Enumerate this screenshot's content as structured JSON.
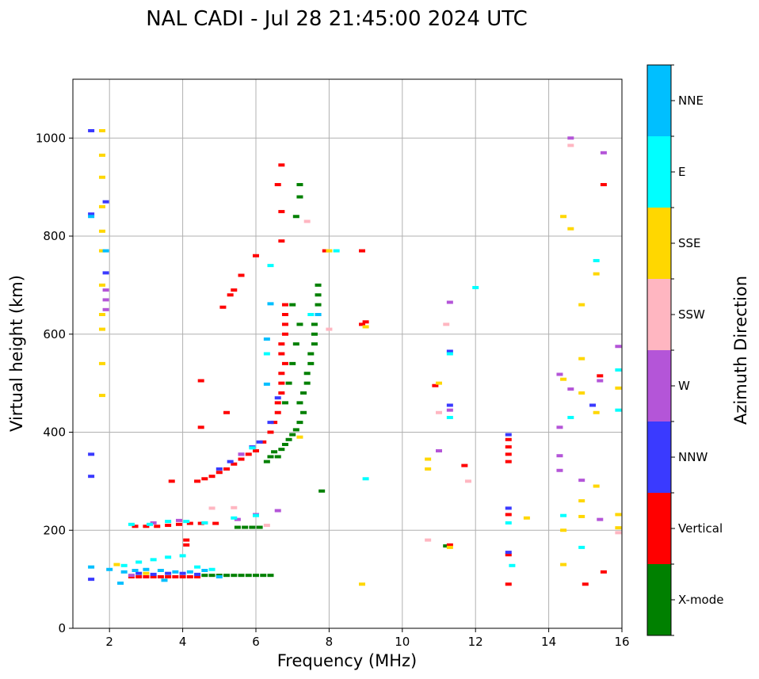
{
  "chart_data": {
    "type": "scatter",
    "title": "NAL CADI - Jul 28 21:45:00 2024 UTC",
    "xlabel": "Frequency (MHz)",
    "ylabel": "Virtual height (km)",
    "xlim": [
      1,
      16
    ],
    "ylim": [
      0,
      1120
    ],
    "xticks": [
      2,
      4,
      6,
      8,
      10,
      12,
      14,
      16
    ],
    "yticks": [
      0,
      200,
      400,
      600,
      800,
      1000
    ],
    "grid": true,
    "colorbar": {
      "label": "Azimuth Direction",
      "categories": [
        {
          "name": "X-mode",
          "color": "#008000"
        },
        {
          "name": "Vertical",
          "color": "#ff0000"
        },
        {
          "name": "NNW",
          "color": "#3a3aff"
        },
        {
          "name": "W",
          "color": "#b455d8"
        },
        {
          "name": "SSW",
          "color": "#ffb6c1"
        },
        {
          "name": "SSE",
          "color": "#ffd700"
        },
        {
          "name": "E",
          "color": "#00ffff"
        },
        {
          "name": "NNE",
          "color": "#00bfff"
        }
      ]
    },
    "series": [
      {
        "name": "X-mode",
        "color": "#008000",
        "points": [
          [
            4.6,
            108
          ],
          [
            4.8,
            108
          ],
          [
            5.0,
            108
          ],
          [
            5.2,
            108
          ],
          [
            5.4,
            108
          ],
          [
            5.6,
            108
          ],
          [
            5.8,
            108
          ],
          [
            6.0,
            108
          ],
          [
            6.2,
            108
          ],
          [
            6.4,
            108
          ],
          [
            5.5,
            206
          ],
          [
            5.7,
            206
          ],
          [
            5.9,
            206
          ],
          [
            6.1,
            206
          ],
          [
            6.3,
            340
          ],
          [
            6.4,
            350
          ],
          [
            6.5,
            360
          ],
          [
            6.6,
            350
          ],
          [
            6.7,
            365
          ],
          [
            6.8,
            375
          ],
          [
            6.9,
            385
          ],
          [
            7.0,
            395
          ],
          [
            7.1,
            405
          ],
          [
            7.2,
            420
          ],
          [
            7.3,
            440
          ],
          [
            7.2,
            460
          ],
          [
            7.3,
            480
          ],
          [
            7.4,
            500
          ],
          [
            7.4,
            520
          ],
          [
            7.5,
            540
          ],
          [
            7.5,
            560
          ],
          [
            7.6,
            580
          ],
          [
            7.6,
            600
          ],
          [
            7.6,
            620
          ],
          [
            7.7,
            640
          ],
          [
            7.7,
            660
          ],
          [
            7.7,
            680
          ],
          [
            7.7,
            700
          ],
          [
            6.8,
            460
          ],
          [
            6.9,
            500
          ],
          [
            7.0,
            540
          ],
          [
            7.1,
            580
          ],
          [
            7.2,
            620
          ],
          [
            7.0,
            660
          ],
          [
            7.1,
            840
          ],
          [
            7.2,
            880
          ],
          [
            7.2,
            905
          ],
          [
            7.8,
            280
          ],
          [
            11.2,
            168
          ]
        ]
      },
      {
        "name": "Vertical",
        "color": "#ff0000",
        "points": [
          [
            2.6,
            105
          ],
          [
            2.8,
            105
          ],
          [
            3.0,
            105
          ],
          [
            3.2,
            105
          ],
          [
            3.4,
            105
          ],
          [
            3.6,
            105
          ],
          [
            3.8,
            105
          ],
          [
            4.0,
            105
          ],
          [
            4.2,
            105
          ],
          [
            4.4,
            105
          ],
          [
            2.7,
            208
          ],
          [
            3.0,
            208
          ],
          [
            3.3,
            208
          ],
          [
            3.6,
            210
          ],
          [
            3.9,
            212
          ],
          [
            4.2,
            214
          ],
          [
            4.5,
            214
          ],
          [
            4.9,
            214
          ],
          [
            4.1,
            170
          ],
          [
            4.1,
            180
          ],
          [
            4.4,
            300
          ],
          [
            4.6,
            305
          ],
          [
            4.8,
            310
          ],
          [
            5.0,
            318
          ],
          [
            5.2,
            325
          ],
          [
            5.4,
            335
          ],
          [
            5.6,
            345
          ],
          [
            5.8,
            355
          ],
          [
            6.0,
            362
          ],
          [
            6.2,
            380
          ],
          [
            6.4,
            400
          ],
          [
            6.5,
            420
          ],
          [
            6.6,
            440
          ],
          [
            6.6,
            460
          ],
          [
            6.7,
            480
          ],
          [
            6.7,
            500
          ],
          [
            6.7,
            520
          ],
          [
            6.8,
            540
          ],
          [
            6.7,
            560
          ],
          [
            6.7,
            580
          ],
          [
            6.8,
            600
          ],
          [
            6.8,
            620
          ],
          [
            6.8,
            640
          ],
          [
            6.8,
            660
          ],
          [
            5.1,
            655
          ],
          [
            5.3,
            680
          ],
          [
            5.4,
            690
          ],
          [
            5.6,
            720
          ],
          [
            6.0,
            760
          ],
          [
            6.7,
            790
          ],
          [
            6.7,
            850
          ],
          [
            6.7,
            945
          ],
          [
            6.6,
            905
          ],
          [
            4.5,
            505
          ],
          [
            4.5,
            410
          ],
          [
            5.2,
            440
          ],
          [
            3.7,
            300
          ],
          [
            9.0,
            625
          ],
          [
            8.9,
            620
          ],
          [
            8.9,
            770
          ],
          [
            7.9,
            770
          ],
          [
            10.9,
            495
          ],
          [
            11.3,
            170
          ],
          [
            11.7,
            332
          ],
          [
            12.9,
            340
          ],
          [
            12.9,
            355
          ],
          [
            12.9,
            370
          ],
          [
            12.9,
            385
          ],
          [
            12.9,
            232
          ],
          [
            12.9,
            150
          ],
          [
            12.9,
            90
          ],
          [
            15.0,
            90
          ],
          [
            15.5,
            115
          ],
          [
            15.4,
            515
          ],
          [
            15.5,
            905
          ]
        ]
      },
      {
        "name": "NNW",
        "color": "#3a3aff",
        "points": [
          [
            1.5,
            100
          ],
          [
            1.5,
            355
          ],
          [
            1.5,
            310
          ],
          [
            1.5,
            845
          ],
          [
            1.5,
            1015
          ],
          [
            1.9,
            870
          ],
          [
            1.9,
            725
          ],
          [
            2.8,
            112
          ],
          [
            3.2,
            110
          ],
          [
            3.6,
            112
          ],
          [
            4.0,
            112
          ],
          [
            4.4,
            110
          ],
          [
            5.0,
            325
          ],
          [
            5.3,
            340
          ],
          [
            5.6,
            355
          ],
          [
            5.9,
            370
          ],
          [
            6.1,
            380
          ],
          [
            6.4,
            420
          ],
          [
            6.6,
            470
          ],
          [
            11.3,
            565
          ],
          [
            11.3,
            455
          ],
          [
            12.9,
            395
          ],
          [
            12.9,
            245
          ],
          [
            12.9,
            155
          ],
          [
            15.2,
            455
          ]
        ]
      },
      {
        "name": "W",
        "color": "#b455d8",
        "points": [
          [
            1.9,
            650
          ],
          [
            1.9,
            670
          ],
          [
            1.9,
            690
          ],
          [
            2.6,
            108
          ],
          [
            3.2,
            215
          ],
          [
            3.9,
            220
          ],
          [
            4.6,
            215
          ],
          [
            5.5,
            222
          ],
          [
            6.0,
            232
          ],
          [
            6.6,
            240
          ],
          [
            5.6,
            355
          ],
          [
            11.0,
            362
          ],
          [
            11.3,
            665
          ],
          [
            11.3,
            445
          ],
          [
            14.3,
            322
          ],
          [
            14.3,
            352
          ],
          [
            14.3,
            410
          ],
          [
            14.3,
            518
          ],
          [
            14.6,
            488
          ],
          [
            14.6,
            1000
          ],
          [
            14.9,
            302
          ],
          [
            15.4,
            222
          ],
          [
            15.4,
            505
          ],
          [
            15.5,
            970
          ],
          [
            15.9,
            575
          ]
        ]
      },
      {
        "name": "SSW",
        "color": "#ffb6c1",
        "points": [
          [
            4.8,
            245
          ],
          [
            5.4,
            246
          ],
          [
            6.3,
            210
          ],
          [
            7.4,
            830
          ],
          [
            8.0,
            610
          ],
          [
            10.7,
            180
          ],
          [
            11.0,
            440
          ],
          [
            11.2,
            620
          ],
          [
            11.8,
            300
          ],
          [
            14.6,
            985
          ],
          [
            15.9,
            195
          ]
        ]
      },
      {
        "name": "SSE",
        "color": "#ffd700",
        "points": [
          [
            1.8,
            1015
          ],
          [
            1.8,
            965
          ],
          [
            1.8,
            920
          ],
          [
            1.8,
            860
          ],
          [
            1.8,
            810
          ],
          [
            1.8,
            770
          ],
          [
            1.8,
            700
          ],
          [
            1.8,
            640
          ],
          [
            1.8,
            610
          ],
          [
            1.8,
            540
          ],
          [
            1.8,
            475
          ],
          [
            2.2,
            130
          ],
          [
            3.0,
            112
          ],
          [
            7.2,
            390
          ],
          [
            8.0,
            770
          ],
          [
            9.0,
            615
          ],
          [
            8.9,
            90
          ],
          [
            10.7,
            345
          ],
          [
            10.7,
            325
          ],
          [
            11.0,
            500
          ],
          [
            11.3,
            165
          ],
          [
            13.4,
            225
          ],
          [
            14.4,
            130
          ],
          [
            14.4,
            200
          ],
          [
            14.4,
            840
          ],
          [
            14.4,
            508
          ],
          [
            14.6,
            815
          ],
          [
            14.9,
            660
          ],
          [
            14.9,
            550
          ],
          [
            14.9,
            480
          ],
          [
            14.9,
            260
          ],
          [
            14.9,
            228
          ],
          [
            15.3,
            440
          ],
          [
            15.3,
            290
          ],
          [
            15.3,
            723
          ],
          [
            15.9,
            205
          ],
          [
            15.9,
            232
          ],
          [
            15.9,
            490
          ]
        ]
      },
      {
        "name": "E",
        "color": "#00ffff",
        "points": [
          [
            2.4,
            128
          ],
          [
            2.8,
            135
          ],
          [
            3.2,
            140
          ],
          [
            3.6,
            145
          ],
          [
            4.0,
            148
          ],
          [
            4.4,
            125
          ],
          [
            4.8,
            120
          ],
          [
            2.6,
            212
          ],
          [
            3.1,
            212
          ],
          [
            3.6,
            218
          ],
          [
            4.1,
            218
          ],
          [
            4.6,
            215
          ],
          [
            5.4,
            225
          ],
          [
            6.0,
            230
          ],
          [
            5.9,
            368
          ],
          [
            6.3,
            560
          ],
          [
            6.4,
            740
          ],
          [
            7.5,
            640
          ],
          [
            8.2,
            770
          ],
          [
            9.0,
            305
          ],
          [
            11.3,
            430
          ],
          [
            11.3,
            560
          ],
          [
            12.0,
            695
          ],
          [
            12.9,
            215
          ],
          [
            13.0,
            128
          ],
          [
            14.4,
            230
          ],
          [
            14.6,
            430
          ],
          [
            14.9,
            165
          ],
          [
            15.3,
            750
          ],
          [
            15.9,
            445
          ],
          [
            15.9,
            527
          ]
        ]
      },
      {
        "name": "NNE",
        "color": "#00bfff",
        "points": [
          [
            1.5,
            125
          ],
          [
            2.0,
            120
          ],
          [
            2.4,
            115
          ],
          [
            2.7,
            118
          ],
          [
            3.0,
            120
          ],
          [
            3.4,
            118
          ],
          [
            3.8,
            115
          ],
          [
            4.2,
            115
          ],
          [
            4.6,
            118
          ],
          [
            5.0,
            105
          ],
          [
            2.3,
            92
          ],
          [
            3.5,
            98
          ],
          [
            6.3,
            498
          ],
          [
            6.4,
            662
          ],
          [
            6.3,
            590
          ],
          [
            7.7,
            640
          ],
          [
            1.9,
            770
          ],
          [
            1.5,
            840
          ]
        ]
      }
    ]
  }
}
